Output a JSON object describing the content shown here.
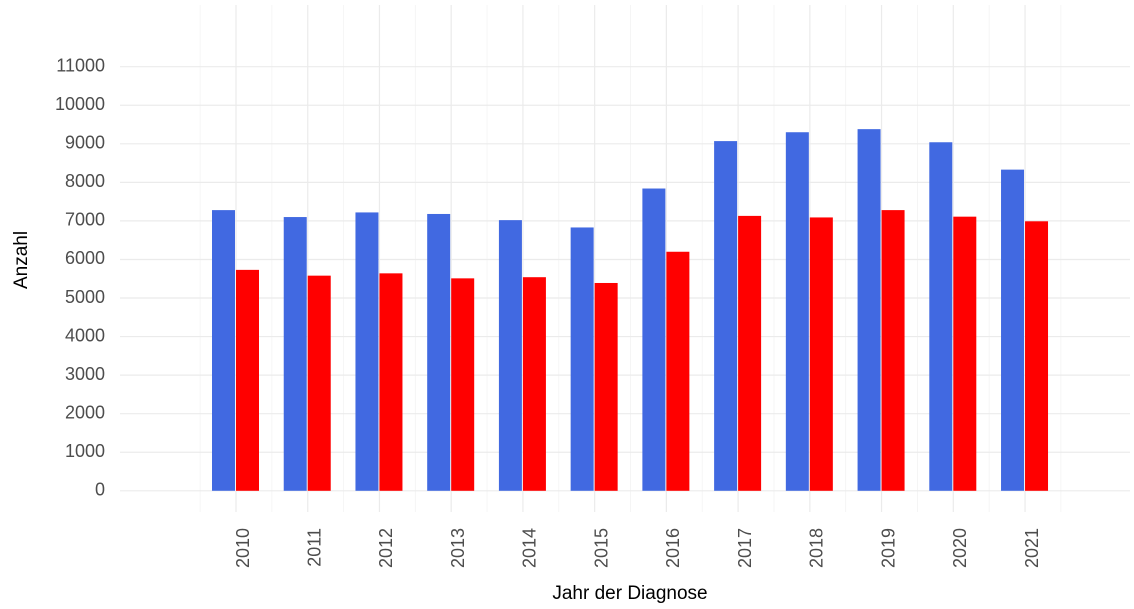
{
  "chart_data": {
    "type": "bar",
    "x_label": "Jahr der Diagnose",
    "y_label": "Anzahl",
    "categories": [
      "2010",
      "2011",
      "2012",
      "2013",
      "2014",
      "2015",
      "2016",
      "2017",
      "2018",
      "2019",
      "2020",
      "2021"
    ],
    "series": [
      {
        "color": "#4169e1",
        "values": [
          7280,
          7100,
          7220,
          7180,
          7020,
          6830,
          7840,
          9070,
          9300,
          9380,
          9040,
          8330
        ]
      },
      {
        "color": "#ff0000",
        "values": [
          5730,
          5580,
          5640,
          5510,
          5540,
          5390,
          6200,
          7130,
          7090,
          7280,
          7110,
          6990
        ]
      }
    ],
    "ylim": [
      -550,
      12600
    ],
    "yticks": [
      0,
      1000,
      2000,
      3000,
      4000,
      5000,
      6000,
      7000,
      8000,
      9000,
      10000,
      11000
    ],
    "grid": true
  }
}
